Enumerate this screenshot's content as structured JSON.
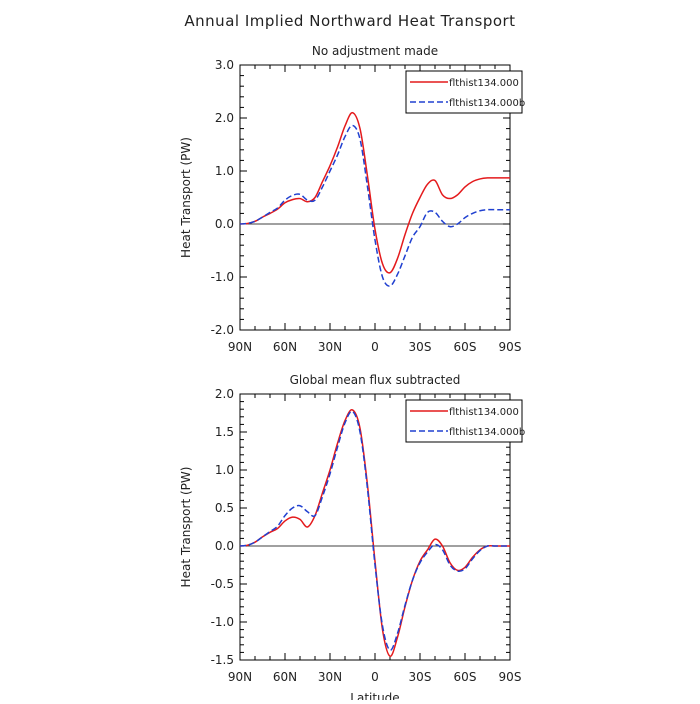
{
  "figure": {
    "title": "Annual Implied Northward Heat Transport"
  },
  "chart_data": [
    {
      "type": "line",
      "title": "No adjustment made",
      "xlabel": "",
      "ylabel": "Heat Transport (PW)",
      "x_ticks": [
        "90N",
        "60N",
        "30N",
        "0",
        "30S",
        "60S",
        "90S"
      ],
      "x_range": [
        90,
        -90
      ],
      "ylim": [
        -2.0,
        3.0
      ],
      "y_ticks": [
        "-2.0",
        "-1.0",
        "0.0",
        "1.0",
        "2.0",
        "3.0"
      ],
      "legend_position": "top-right",
      "series": [
        {
          "name": "flthist134.000",
          "color": "#e41a1c",
          "dash": "solid",
          "x": [
            90,
            85,
            80,
            75,
            70,
            65,
            60,
            55,
            50,
            45,
            40,
            35,
            30,
            25,
            20,
            15,
            10,
            5,
            0,
            -5,
            -10,
            -15,
            -20,
            -25,
            -30,
            -35,
            -40,
            -45,
            -50,
            -55,
            -60,
            -65,
            -70,
            -75,
            -80,
            -85,
            -90
          ],
          "y": [
            0.0,
            0.01,
            0.05,
            0.13,
            0.2,
            0.28,
            0.4,
            0.46,
            0.48,
            0.42,
            0.5,
            0.8,
            1.1,
            1.45,
            1.85,
            2.1,
            1.8,
            0.9,
            -0.1,
            -0.75,
            -0.92,
            -0.65,
            -0.2,
            0.2,
            0.5,
            0.75,
            0.82,
            0.55,
            0.48,
            0.55,
            0.7,
            0.8,
            0.85,
            0.87,
            0.87,
            0.87,
            0.87
          ]
        },
        {
          "name": "flthist134.000b",
          "color": "#2040d0",
          "dash": "dashed",
          "x": [
            90,
            85,
            80,
            75,
            70,
            65,
            60,
            55,
            50,
            45,
            40,
            35,
            30,
            25,
            20,
            15,
            10,
            5,
            0,
            -5,
            -10,
            -15,
            -20,
            -25,
            -30,
            -35,
            -40,
            -45,
            -50,
            -55,
            -60,
            -65,
            -70,
            -75,
            -80,
            -85,
            -90
          ],
          "y": [
            0.0,
            0.01,
            0.05,
            0.13,
            0.22,
            0.3,
            0.45,
            0.54,
            0.56,
            0.45,
            0.45,
            0.7,
            1.0,
            1.3,
            1.65,
            1.86,
            1.6,
            0.7,
            -0.3,
            -1.0,
            -1.17,
            -0.95,
            -0.6,
            -0.25,
            -0.05,
            0.22,
            0.22,
            0.05,
            -0.05,
            0.0,
            0.12,
            0.2,
            0.25,
            0.27,
            0.27,
            0.27,
            0.27
          ]
        }
      ]
    },
    {
      "type": "line",
      "title": "Global mean flux subtracted",
      "xlabel": "Latitude",
      "ylabel": "Heat Transport (PW)",
      "x_ticks": [
        "90N",
        "60N",
        "30N",
        "0",
        "30S",
        "60S",
        "90S"
      ],
      "x_range": [
        90,
        -90
      ],
      "ylim": [
        -1.5,
        2.0
      ],
      "y_ticks": [
        "-1.5",
        "-1.0",
        "-0.5",
        "0.0",
        "0.5",
        "1.0",
        "1.5",
        "2.0"
      ],
      "legend_position": "top-right",
      "series": [
        {
          "name": "flthist134.000",
          "color": "#e41a1c",
          "dash": "solid",
          "x": [
            90,
            85,
            80,
            75,
            70,
            65,
            60,
            55,
            50,
            45,
            40,
            35,
            30,
            25,
            20,
            15,
            10,
            5,
            0,
            -5,
            -10,
            -15,
            -20,
            -25,
            -30,
            -35,
            -40,
            -45,
            -50,
            -55,
            -60,
            -65,
            -70,
            -75,
            -80,
            -85,
            -90
          ],
          "y": [
            0.0,
            0.01,
            0.05,
            0.12,
            0.18,
            0.23,
            0.33,
            0.38,
            0.35,
            0.25,
            0.4,
            0.7,
            1.0,
            1.35,
            1.65,
            1.79,
            1.55,
            0.8,
            -0.2,
            -1.1,
            -1.45,
            -1.2,
            -0.8,
            -0.45,
            -0.2,
            -0.05,
            0.09,
            0.0,
            -0.22,
            -0.32,
            -0.28,
            -0.15,
            -0.05,
            0.0,
            0.0,
            0.0,
            0.0
          ]
        },
        {
          "name": "flthist134.000b",
          "color": "#2040d0",
          "dash": "dashed",
          "x": [
            90,
            85,
            80,
            75,
            70,
            65,
            60,
            55,
            50,
            45,
            40,
            35,
            30,
            25,
            20,
            15,
            10,
            5,
            0,
            -5,
            -10,
            -15,
            -20,
            -25,
            -30,
            -35,
            -40,
            -45,
            -50,
            -55,
            -60,
            -65,
            -70,
            -75,
            -80,
            -85,
            -90
          ],
          "y": [
            0.0,
            0.01,
            0.05,
            0.12,
            0.19,
            0.26,
            0.4,
            0.5,
            0.53,
            0.45,
            0.4,
            0.65,
            0.95,
            1.3,
            1.62,
            1.77,
            1.5,
            0.75,
            -0.25,
            -1.05,
            -1.37,
            -1.15,
            -0.78,
            -0.45,
            -0.22,
            -0.08,
            0.02,
            -0.05,
            -0.25,
            -0.33,
            -0.3,
            -0.17,
            -0.06,
            0.0,
            0.0,
            0.0,
            0.0
          ]
        }
      ]
    }
  ]
}
